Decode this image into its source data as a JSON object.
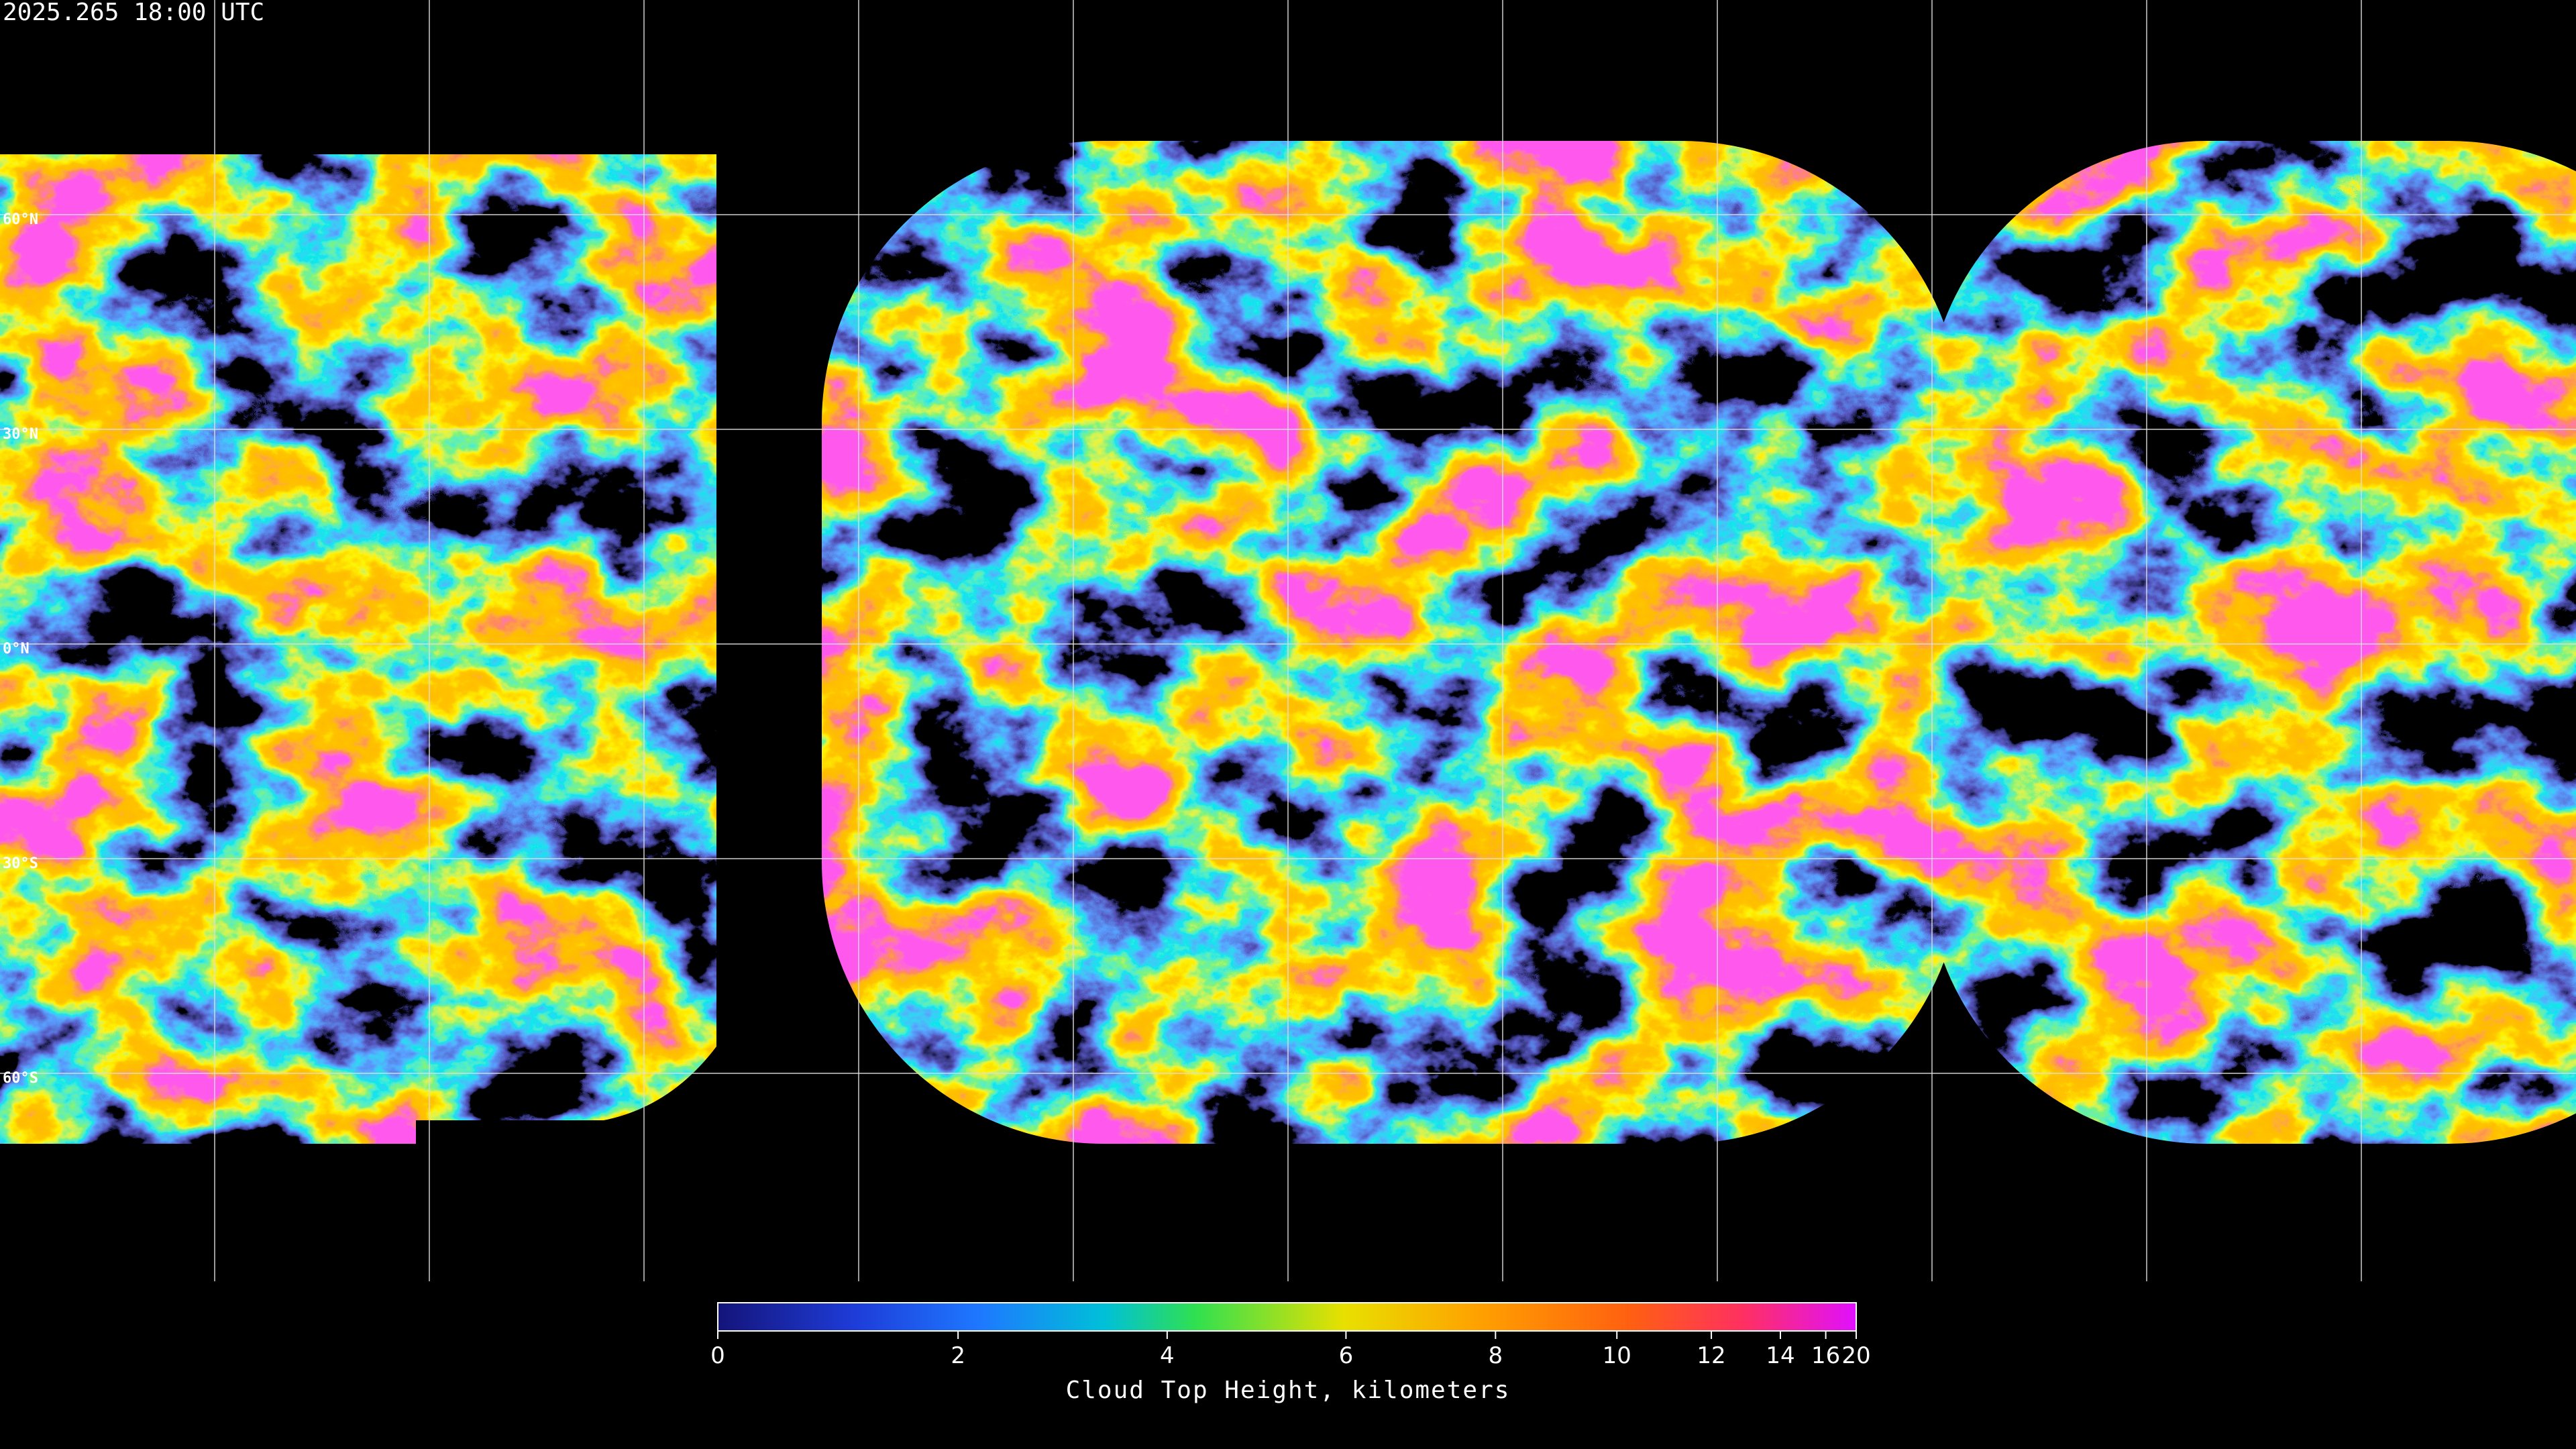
{
  "timestamp": "2025.265 18:00 UTC",
  "map": {
    "latitude_labels": [
      "60°N",
      "30°N",
      "0°N",
      "30°S",
      "60°S"
    ]
  },
  "colorbar": {
    "title": "Cloud Top Height, kilometers",
    "range": [
      0,
      20
    ],
    "ticks": [
      0,
      2,
      4,
      6,
      8,
      10,
      12,
      14,
      16,
      20
    ]
  }
}
